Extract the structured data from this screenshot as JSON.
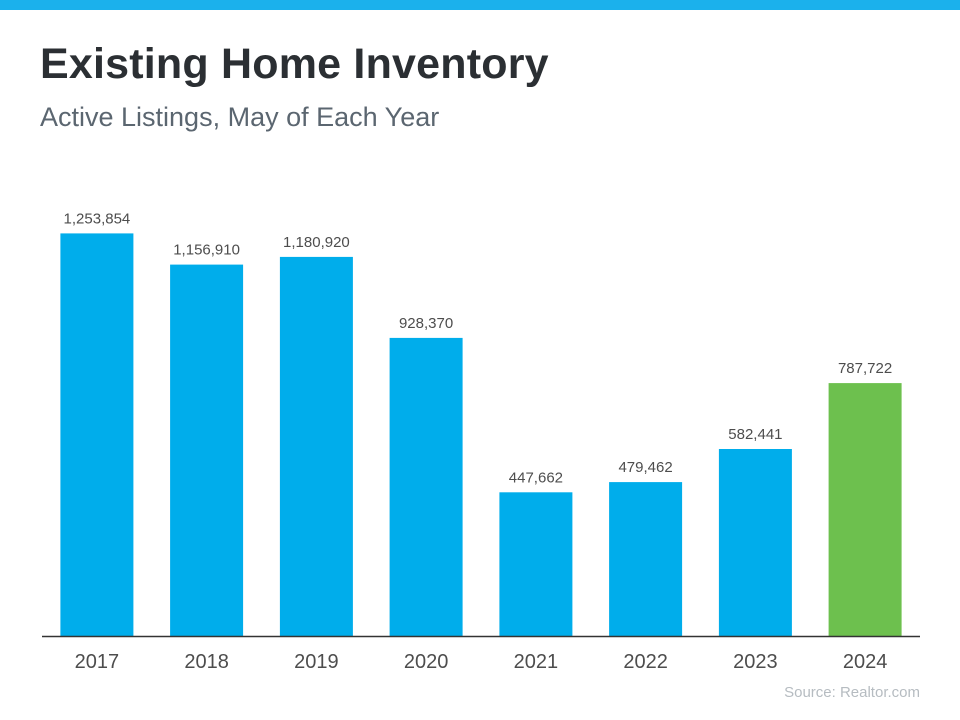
{
  "header": {
    "title": "Existing Home Inventory",
    "subtitle": "Active Listings, May of Each Year"
  },
  "footer": {
    "source": "Source: Realtor.com"
  },
  "colors": {
    "top_bar": "#1bb1ec",
    "bar_default": "#00adeb",
    "bar_highlight": "#6dc04e",
    "axis": "#333333",
    "label": "#4d4d4d"
  },
  "chart_data": {
    "type": "bar",
    "title": "Existing Home Inventory",
    "subtitle": "Active Listings, May of Each Year",
    "categories": [
      "2017",
      "2018",
      "2019",
      "2020",
      "2021",
      "2022",
      "2023",
      "2024"
    ],
    "values": [
      1253854,
      1156910,
      1180920,
      928370,
      447662,
      479462,
      582441,
      787722
    ],
    "value_labels": [
      "1,253,854",
      "1,156,910",
      "1,180,920",
      "928,370",
      "447,662",
      "479,462",
      "582,441",
      "787,722"
    ],
    "highlight_category": "2024",
    "ylim": [
      0,
      1330000
    ],
    "grid": false,
    "legend": "none",
    "xlabel": "",
    "ylabel": ""
  }
}
